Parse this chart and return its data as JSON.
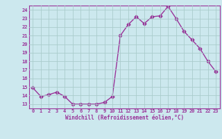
{
  "x": [
    0,
    1,
    2,
    3,
    4,
    5,
    6,
    7,
    8,
    9,
    10,
    11,
    12,
    13,
    14,
    15,
    16,
    17,
    18,
    19,
    20,
    21,
    22,
    23
  ],
  "y": [
    14.9,
    13.9,
    14.1,
    14.4,
    13.9,
    13.0,
    13.0,
    13.0,
    13.0,
    13.2,
    13.9,
    21.0,
    22.3,
    23.2,
    22.4,
    23.2,
    23.3,
    24.4,
    23.0,
    21.5,
    20.5,
    19.5,
    18.0,
    16.8
  ],
  "line_color": "#993399",
  "marker": "D",
  "markersize": 2.5,
  "linewidth": 1.0,
  "xlabel": "Windchill (Refroidissement éolien,°C)",
  "xlim": [
    -0.5,
    23.5
  ],
  "ylim": [
    12.5,
    24.5
  ],
  "yticks": [
    13,
    14,
    15,
    16,
    17,
    18,
    19,
    20,
    21,
    22,
    23,
    24
  ],
  "xtick_labels": [
    "0",
    "1",
    "2",
    "3",
    "4",
    "5",
    "6",
    "7",
    "8",
    "9",
    "10",
    "11",
    "12",
    "13",
    "14",
    "15",
    "16",
    "17",
    "18",
    "19",
    "20",
    "21",
    "22",
    "23"
  ],
  "bg_color": "#cce8ee",
  "grid_color": "#aacccc",
  "line_purple": "#993399",
  "spine_color": "#993399"
}
